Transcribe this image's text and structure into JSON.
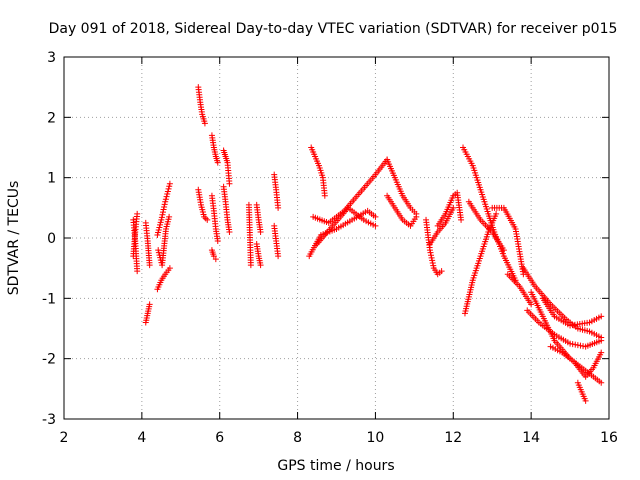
{
  "chart_data": {
    "type": "scatter",
    "title": "Day 091 of 2018, Sidereal Day-to-day VTEC variation (SDTVAR) for receiver p015",
    "xlabel": "GPS time / hours",
    "ylabel": "SDTVAR / TECUs",
    "xlim": [
      2,
      16
    ],
    "ylim": [
      -3,
      3
    ],
    "xticks": [
      2,
      4,
      6,
      8,
      10,
      12,
      14,
      16
    ],
    "yticks": [
      -3,
      -2,
      -1,
      0,
      1,
      2,
      3
    ],
    "grid": true,
    "marker": "+",
    "marker_color": "#ff0000",
    "series": [
      {
        "name": "SDTVAR",
        "segments": [
          {
            "x": [
              3.78,
              3.83,
              3.88
            ],
            "y": [
              0.3,
              -0.05,
              -0.55
            ]
          },
          {
            "x": [
              3.78,
              3.83,
              3.88
            ],
            "y": [
              -0.3,
              0.1,
              0.4
            ]
          },
          {
            "x": [
              4.1,
              4.15,
              4.2
            ],
            "y": [
              -1.4,
              -1.25,
              -1.1
            ]
          },
          {
            "x": [
              4.1,
              4.15,
              4.2
            ],
            "y": [
              0.25,
              -0.05,
              -0.45
            ]
          },
          {
            "x": [
              4.4,
              4.5,
              4.6,
              4.72
            ],
            "y": [
              -0.85,
              -0.7,
              -0.6,
              -0.5
            ]
          },
          {
            "x": [
              4.4,
              4.5,
              4.6,
              4.72
            ],
            "y": [
              0.05,
              0.3,
              0.6,
              0.9
            ]
          },
          {
            "x": [
              4.42,
              4.52,
              4.62,
              4.7
            ],
            "y": [
              -0.2,
              -0.45,
              0.15,
              0.35
            ]
          },
          {
            "x": [
              5.45,
              5.5,
              5.55,
              5.62
            ],
            "y": [
              2.5,
              2.25,
              2.05,
              1.9
            ]
          },
          {
            "x": [
              5.45,
              5.52,
              5.6,
              5.68
            ],
            "y": [
              0.8,
              0.55,
              0.35,
              0.3
            ]
          },
          {
            "x": [
              5.8,
              5.85,
              5.9,
              5.95
            ],
            "y": [
              1.7,
              1.5,
              1.35,
              1.25
            ]
          },
          {
            "x": [
              5.8,
              5.85,
              5.9,
              5.95
            ],
            "y": [
              0.7,
              0.45,
              0.15,
              -0.05
            ]
          },
          {
            "x": [
              5.8,
              5.85,
              5.9
            ],
            "y": [
              -0.2,
              -0.3,
              -0.35
            ]
          },
          {
            "x": [
              6.1,
              6.15,
              6.2,
              6.25
            ],
            "y": [
              1.45,
              1.35,
              1.25,
              0.9
            ]
          },
          {
            "x": [
              6.1,
              6.15,
              6.2,
              6.25
            ],
            "y": [
              0.85,
              0.6,
              0.3,
              0.1
            ]
          },
          {
            "x": [
              6.75,
              6.8
            ],
            "y": [
              0.55,
              -0.45
            ]
          },
          {
            "x": [
              6.95,
              7.0,
              7.05
            ],
            "y": [
              0.55,
              0.3,
              0.1
            ]
          },
          {
            "x": [
              6.95,
              7.0,
              7.05
            ],
            "y": [
              -0.1,
              -0.3,
              -0.45
            ]
          },
          {
            "x": [
              7.4,
              7.45,
              7.5
            ],
            "y": [
              1.05,
              0.8,
              0.5
            ]
          },
          {
            "x": [
              7.4,
              7.45,
              7.5
            ],
            "y": [
              0.2,
              -0.05,
              -0.3
            ]
          },
          {
            "x": [
              8.35,
              8.45,
              8.55,
              8.65,
              8.7
            ],
            "y": [
              1.5,
              1.35,
              1.2,
              1.0,
              0.7
            ]
          },
          {
            "x": [
              8.3,
              8.6,
              9.0,
              9.4,
              9.8,
              10.0
            ],
            "y": [
              -0.3,
              0.05,
              0.15,
              0.3,
              0.45,
              0.35
            ]
          },
          {
            "x": [
              8.4,
              8.8,
              9.2,
              9.6,
              10.0,
              10.3
            ],
            "y": [
              0.35,
              0.25,
              0.45,
              0.75,
              1.05,
              1.3
            ]
          },
          {
            "x": [
              8.5,
              8.9,
              9.3,
              9.7,
              10.0
            ],
            "y": [
              -0.1,
              0.2,
              0.5,
              0.3,
              0.2
            ]
          },
          {
            "x": [
              10.3,
              10.5,
              10.7,
              10.9,
              11.05
            ],
            "y": [
              1.3,
              1.0,
              0.7,
              0.5,
              0.4
            ]
          },
          {
            "x": [
              10.3,
              10.5,
              10.7,
              10.9,
              11.05
            ],
            "y": [
              0.7,
              0.5,
              0.3,
              0.2,
              0.35
            ]
          },
          {
            "x": [
              11.3,
              11.4,
              11.5,
              11.6,
              11.7
            ],
            "y": [
              0.3,
              -0.2,
              -0.5,
              -0.6,
              -0.55
            ]
          },
          {
            "x": [
              11.6,
              11.8,
              12.0,
              12.1,
              12.2
            ],
            "y": [
              0.2,
              0.4,
              0.7,
              0.75,
              0.3
            ]
          },
          {
            "x": [
              11.4,
              11.6,
              11.8,
              12.0
            ],
            "y": [
              -0.1,
              0.1,
              0.25,
              0.5
            ]
          },
          {
            "x": [
              12.25,
              12.5,
              12.7,
              12.9,
              13.05
            ],
            "y": [
              1.5,
              1.2,
              0.8,
              0.4,
              0.1
            ]
          },
          {
            "x": [
              12.3,
              12.5,
              12.7,
              12.9,
              13.1
            ],
            "y": [
              -1.25,
              -0.7,
              -0.3,
              0.1,
              0.4
            ]
          },
          {
            "x": [
              12.4,
              12.7,
              13.0,
              13.3
            ],
            "y": [
              0.6,
              0.3,
              0.1,
              -0.2
            ]
          },
          {
            "x": [
              13.0,
              13.3,
              13.6,
              13.8
            ],
            "y": [
              0.5,
              0.5,
              0.15,
              -0.6
            ]
          },
          {
            "x": [
              13.05,
              13.3,
              13.6
            ],
            "y": [
              0.1,
              -0.3,
              -0.7
            ]
          },
          {
            "x": [
              13.4,
              13.7,
              14.0
            ],
            "y": [
              -0.6,
              -0.8,
              -1.1
            ]
          },
          {
            "x": [
              13.8,
              14.1,
              14.5,
              14.9,
              15.2,
              15.5,
              15.8
            ],
            "y": [
              -0.5,
              -0.8,
              -1.1,
              -1.35,
              -1.5,
              -1.55,
              -1.65
            ]
          },
          {
            "x": [
              13.9,
              14.2,
              14.6,
              15.0,
              15.4,
              15.8
            ],
            "y": [
              -1.2,
              -1.4,
              -1.6,
              -1.75,
              -1.8,
              -1.7
            ]
          },
          {
            "x": [
              14.0,
              14.3,
              14.6,
              15.0,
              15.4,
              15.8
            ],
            "y": [
              -0.9,
              -1.3,
              -1.7,
              -2.0,
              -2.2,
              -2.4
            ]
          },
          {
            "x": [
              14.3,
              14.6,
              15.0,
              15.5,
              15.8
            ],
            "y": [
              -1.0,
              -1.3,
              -1.45,
              -1.4,
              -1.3
            ]
          },
          {
            "x": [
              14.5,
              14.8,
              15.1,
              15.4,
              15.6,
              15.8
            ],
            "y": [
              -1.8,
              -1.9,
              -2.05,
              -2.3,
              -2.15,
              -1.9
            ]
          },
          {
            "x": [
              15.2,
              15.3,
              15.4
            ],
            "y": [
              -2.4,
              -2.55,
              -2.7
            ]
          }
        ]
      }
    ]
  }
}
